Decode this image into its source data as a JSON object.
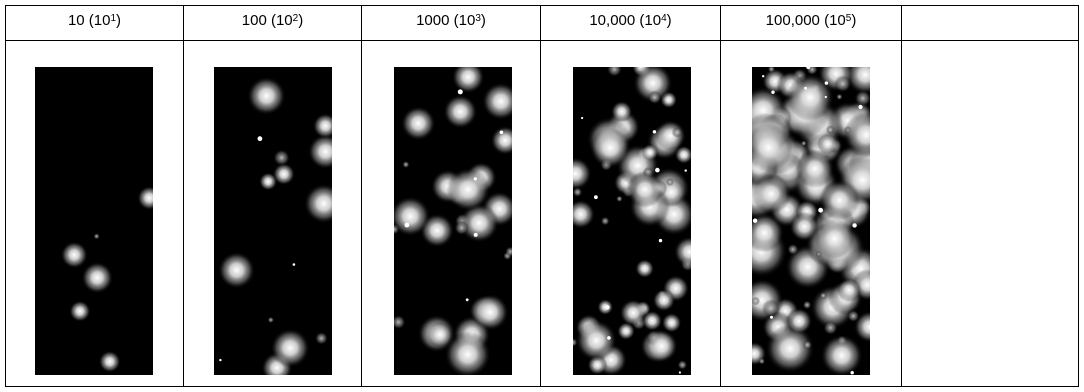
{
  "columns": [
    {
      "value": "10",
      "base": "(10",
      "exp": "1",
      "close": ")"
    },
    {
      "value": "100",
      "base": "(10",
      "exp": "2",
      "close": ")"
    },
    {
      "value": "1000",
      "base": "(10",
      "exp": "3",
      "close": ")"
    },
    {
      "value": "10,000",
      "base": "(10",
      "exp": "4",
      "close": ")"
    },
    {
      "value": "100,000",
      "base": "(10",
      "exp": "5",
      "close": ")"
    },
    {
      "value": "",
      "base": "",
      "exp": "",
      "close": ""
    }
  ]
}
